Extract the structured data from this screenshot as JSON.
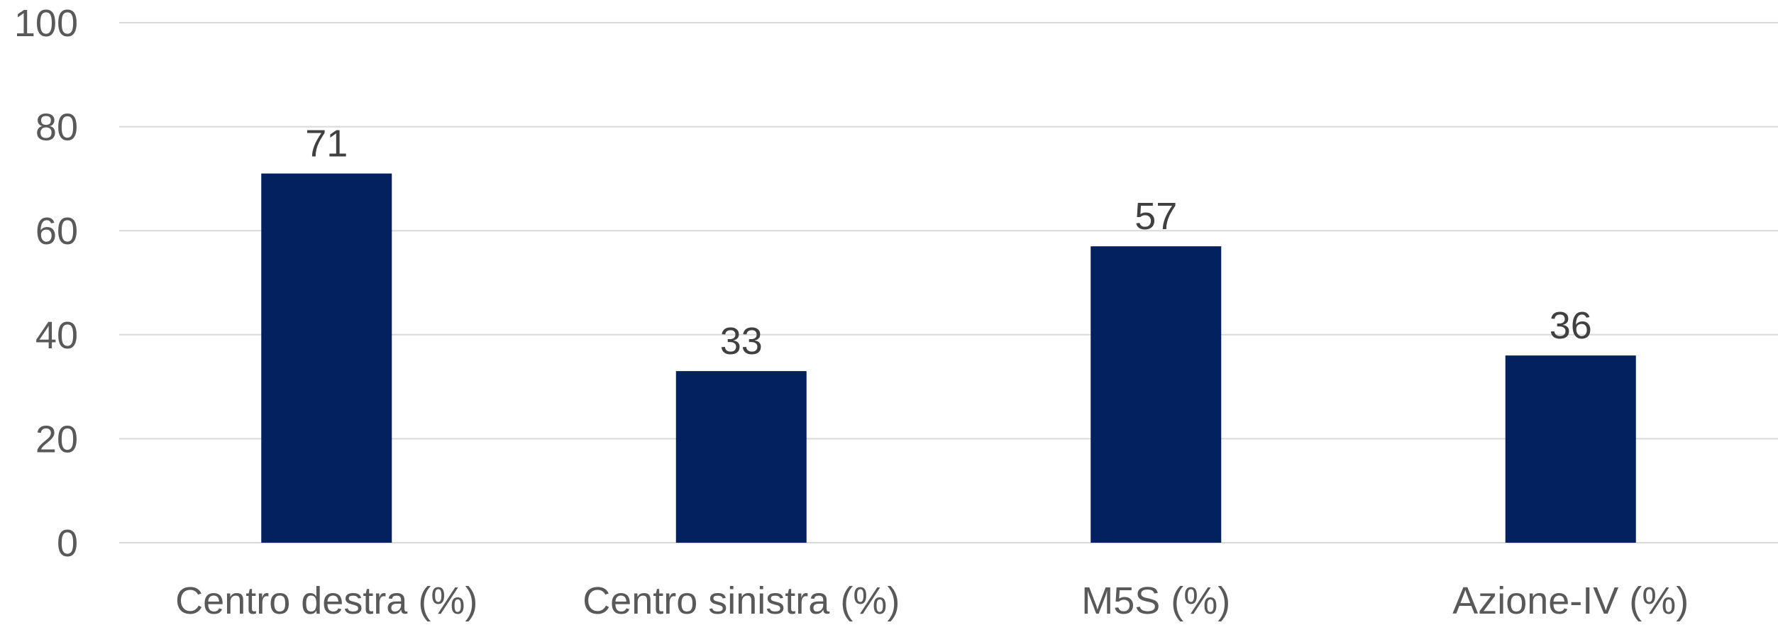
{
  "chart_data": {
    "type": "bar",
    "categories": [
      "Centro destra (%)",
      "Centro sinistra (%)",
      "M5S (%)",
      "Azione-IV (%)"
    ],
    "values": [
      71,
      33,
      57,
      36
    ],
    "data_labels": [
      "71",
      "33",
      "57",
      "36"
    ],
    "ylim": [
      0,
      100
    ],
    "yticks": [
      0,
      20,
      40,
      60,
      80,
      100
    ],
    "ytick_labels": [
      "0",
      "20",
      "40",
      "60",
      "80",
      "100"
    ],
    "grid": true,
    "legend": "none",
    "bar_color": "#03215E",
    "grid_color": "#D9D9D9",
    "label_color": "#595959"
  }
}
